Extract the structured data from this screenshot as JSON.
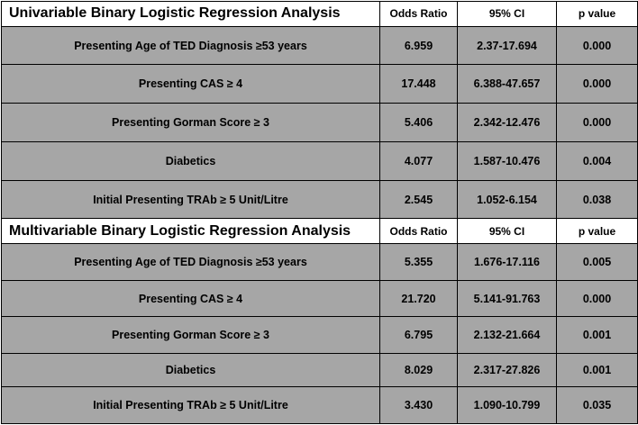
{
  "univariable": {
    "title": "Univariable Binary Logistic Regression Analysis",
    "columns": [
      "Odds Ratio",
      "95% CI",
      "p value"
    ],
    "rows": [
      {
        "label": "Presenting Age of TED Diagnosis ≥53 years",
        "odds_ratio": "6.959",
        "ci": "2.37-17.694",
        "p": "0.000"
      },
      {
        "label": "Presenting CAS ≥ 4",
        "odds_ratio": "17.448",
        "ci": "6.388-47.657",
        "p": "0.000"
      },
      {
        "label": "Presenting Gorman Score ≥ 3",
        "odds_ratio": "5.406",
        "ci": "2.342-12.476",
        "p": "0.000"
      },
      {
        "label": "Diabetics",
        "odds_ratio": "4.077",
        "ci": "1.587-10.476",
        "p": "0.004"
      },
      {
        "label": "Initial Presenting TRAb ≥ 5 Unit/Litre",
        "odds_ratio": "2.545",
        "ci": "1.052-6.154",
        "p": "0.038"
      }
    ]
  },
  "multivariable": {
    "title": "Multivariable Binary Logistic Regression Analysis",
    "columns": [
      "Odds Ratio",
      "95% CI",
      "p value"
    ],
    "rows": [
      {
        "label": "Presenting Age of TED Diagnosis ≥53 years",
        "odds_ratio": "5.355",
        "ci": "1.676-17.116",
        "p": "0.005"
      },
      {
        "label": "Presenting CAS ≥ 4",
        "odds_ratio": "21.720",
        "ci": "5.141-91.763",
        "p": "0.000"
      },
      {
        "label": "Presenting Gorman Score ≥ 3",
        "odds_ratio": "6.795",
        "ci": "2.132-21.664",
        "p": "0.001"
      },
      {
        "label": "Diabetics",
        "odds_ratio": "8.029",
        "ci": "2.317-27.826",
        "p": "0.001"
      },
      {
        "label": "Initial Presenting TRAb ≥ 5 Unit/Litre",
        "odds_ratio": "3.430",
        "ci": "1.090-10.799",
        "p": "0.035"
      }
    ]
  },
  "colors": {
    "header_bg": "#ffffff",
    "row_bg": "#a6a6a6",
    "border": "#000000"
  }
}
